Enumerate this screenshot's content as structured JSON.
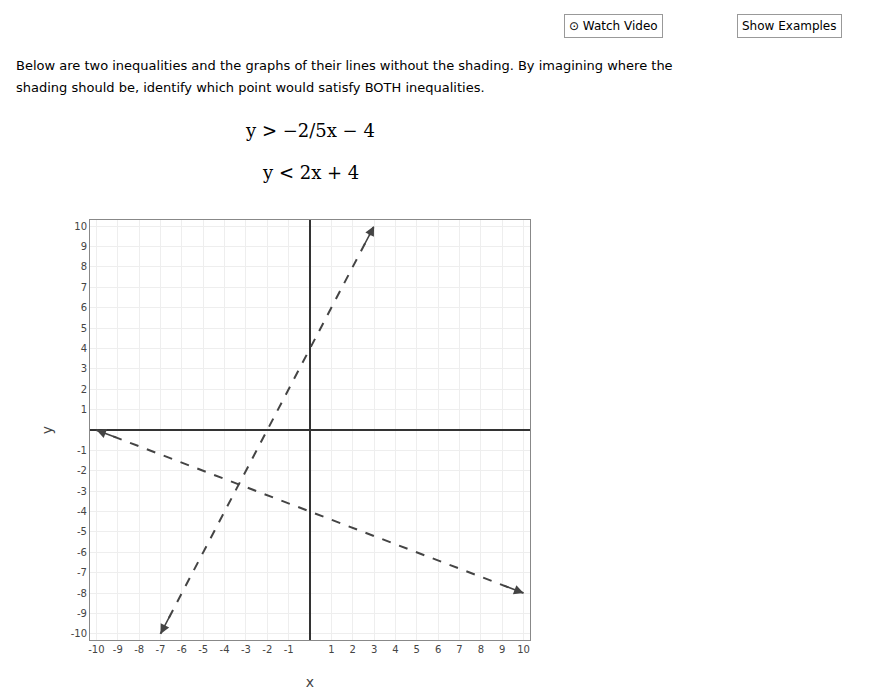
{
  "chart_data": {
    "type": "line",
    "annotations": [
      "⊙ Watch Video",
      "Show Examples",
      "Below are two inequalities and the graphs of their lines without the shading. By imagining where the",
      "shading should be, identify which point would satisfy BOTH inequalities.",
      "y > −2/5x − 4",
      "y < 2x + 4"
    ],
    "x_label": "x",
    "y_label": "y",
    "series": [
      {
        "x": [
          -10,
          10
        ],
        "values": [
          0,
          -8
        ],
        "color": "#444444",
        "line_style": "dashed"
      },
      {
        "x": [
          -7,
          3
        ],
        "values": [
          -10,
          10
        ],
        "color": "#444444",
        "line_style": "dashed"
      }
    ],
    "xlim": [
      -10.3,
      10.3
    ],
    "ylim": [
      -10.3,
      10.3
    ],
    "xticks": [
      -10,
      -9,
      -8,
      -7,
      -6,
      -5,
      -4,
      -3,
      -2,
      -1,
      1,
      2,
      3,
      4,
      5,
      6,
      7,
      8,
      9,
      10
    ],
    "yticks": [
      -10,
      -9,
      -8,
      -7,
      -6,
      -5,
      -4,
      -3,
      -2,
      -1,
      1,
      2,
      3,
      4,
      5,
      6,
      7,
      8,
      9,
      10
    ],
    "grid": true
  }
}
